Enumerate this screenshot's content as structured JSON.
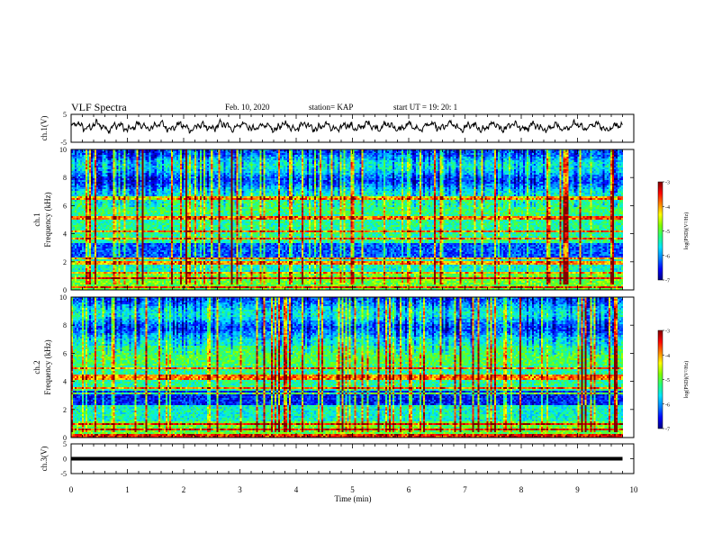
{
  "header": {
    "title": "VLF Spectra",
    "date": "Feb. 10, 2020",
    "station": "station= KAP",
    "start_time": "start  UT =   19: 20: 1"
  },
  "chart_data": [
    {
      "id": "ch1-waveform",
      "type": "line",
      "ylabel": "ch.1(V)",
      "ylim": [
        -5,
        5
      ],
      "yticks": [
        "5",
        "-5"
      ],
      "xlim": [
        0,
        10
      ]
    },
    {
      "id": "ch1-spectrogram",
      "type": "heatmap",
      "ylabel": "ch.1",
      "ylabel2": "Frequency  (kHz)",
      "ylim": [
        0,
        10
      ],
      "yticks": [
        "0",
        "2",
        "4",
        "6",
        "8",
        "10"
      ],
      "colorbar": {
        "label": "log(PSD)(V²/Hz)",
        "range": [
          -7,
          -3
        ],
        "ticks": [
          "-3",
          "-4",
          "-5",
          "-6",
          "-7"
        ]
      }
    },
    {
      "id": "ch2-spectrogram",
      "type": "heatmap",
      "ylabel": "ch.2",
      "ylabel2": "Frequency  (kHz)",
      "ylim": [
        0,
        10
      ],
      "yticks": [
        "0",
        "2",
        "4",
        "6",
        "8",
        "10"
      ],
      "colorbar": {
        "label": "log(PSD)(V²/Hz)",
        "range": [
          -7,
          -3
        ],
        "ticks": [
          "-3",
          "-4",
          "-5",
          "-6",
          "-7"
        ]
      }
    },
    {
      "id": "ch3-waveform",
      "type": "line",
      "ylabel": "ch.3(V)",
      "ylim": [
        -5,
        5
      ],
      "yticks": [
        "5",
        "0",
        "-5"
      ],
      "xlim": [
        0,
        10
      ]
    }
  ],
  "x_axis": {
    "label": "Time  (min)",
    "range": [
      0,
      10
    ],
    "ticks": [
      "0",
      "1",
      "2",
      "3",
      "4",
      "5",
      "6",
      "7",
      "8",
      "9",
      "10"
    ],
    "data_end_min": 9.8
  },
  "colors": {
    "waveform": "#000000",
    "colormap": [
      "#00007f",
      "#0000ff",
      "#007fff",
      "#00e5ff",
      "#23ff7a",
      "#7fff00",
      "#ffff00",
      "#ff7f00",
      "#ff0000",
      "#7f0000"
    ]
  }
}
